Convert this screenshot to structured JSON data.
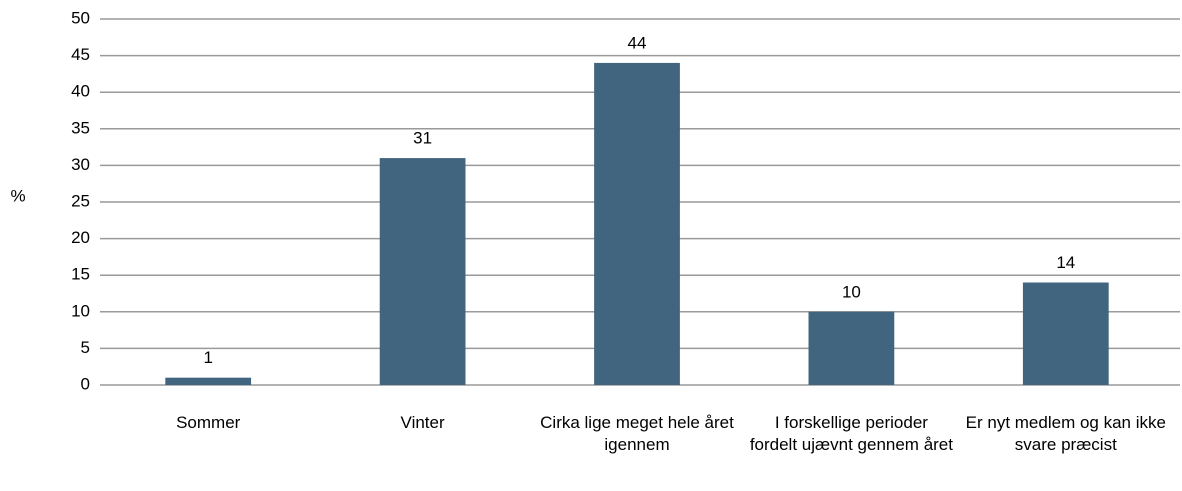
{
  "chart_data": {
    "type": "bar",
    "y_label": "%",
    "categories": [
      "Sommer",
      "Vinter",
      "Cirka lige meget hele året igennem",
      "I forskellige perioder fordelt ujævnt gennem året",
      "Er nyt medlem og kan ikke svare præcist"
    ],
    "values": [
      1,
      31,
      44,
      10,
      14
    ],
    "color": "#41647f",
    "ylim": [
      0,
      50
    ],
    "yticks": [
      0,
      5,
      10,
      15,
      20,
      25,
      30,
      35,
      40,
      45,
      50
    ],
    "grid": true
  }
}
